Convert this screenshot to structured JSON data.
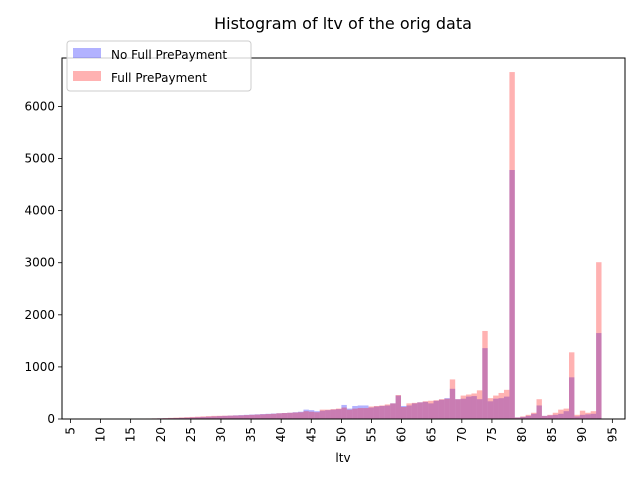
{
  "chart_data": {
    "type": "bar",
    "title": "Histogram of ltv of the orig data",
    "xlabel": "ltv",
    "ylabel": "",
    "xlim": [
      3.6,
      97.1
    ],
    "ylim": [
      0,
      6930
    ],
    "xticks": [
      5,
      10,
      15,
      20,
      25,
      30,
      35,
      40,
      45,
      50,
      55,
      60,
      65,
      70,
      75,
      80,
      85,
      90,
      95
    ],
    "yticks": [
      0,
      1000,
      2000,
      3000,
      4000,
      5000,
      6000
    ],
    "legend_position": "top-left",
    "bin_start": 5,
    "bin_width": 0.9,
    "series": [
      {
        "name": "No Full PrePayment",
        "color": "#0000ff",
        "alpha": 0.3,
        "values": [
          1,
          1,
          1,
          1,
          1,
          1,
          1,
          1,
          2,
          2,
          3,
          4,
          5,
          6,
          8,
          10,
          12,
          14,
          16,
          18,
          22,
          26,
          30,
          35,
          40,
          45,
          50,
          55,
          60,
          65,
          70,
          75,
          80,
          85,
          90,
          95,
          100,
          105,
          110,
          115,
          120,
          130,
          140,
          180,
          170,
          150,
          160,
          170,
          180,
          190,
          270,
          200,
          250,
          260,
          260,
          220,
          240,
          250,
          260,
          300,
          450,
          250,
          260,
          300,
          320,
          330,
          300,
          350,
          370,
          400,
          580,
          380,
          390,
          430,
          440,
          380,
          1360,
          340,
          390,
          400,
          430,
          4780,
          30,
          40,
          60,
          100,
          260,
          60,
          70,
          80,
          100,
          150,
          800,
          50,
          80,
          90,
          100,
          1650
        ]
      },
      {
        "name": "Full PrePayment",
        "color": "#ff0000",
        "alpha": 0.3,
        "values": [
          1,
          1,
          1,
          1,
          1,
          1,
          1,
          1,
          2,
          3,
          4,
          5,
          6,
          8,
          10,
          12,
          14,
          18,
          22,
          26,
          30,
          35,
          40,
          45,
          50,
          55,
          60,
          62,
          64,
          66,
          68,
          70,
          75,
          80,
          85,
          90,
          95,
          100,
          110,
          115,
          120,
          125,
          130,
          150,
          140,
          130,
          180,
          180,
          190,
          200,
          220,
          180,
          200,
          210,
          210,
          240,
          250,
          260,
          280,
          300,
          460,
          230,
          300,
          310,
          320,
          340,
          350,
          360,
          380,
          390,
          760,
          380,
          450,
          470,
          490,
          550,
          1690,
          400,
          450,
          500,
          560,
          6660,
          30,
          50,
          80,
          120,
          380,
          60,
          80,
          120,
          180,
          200,
          1280,
          80,
          160,
          120,
          150,
          3010
        ]
      }
    ]
  }
}
